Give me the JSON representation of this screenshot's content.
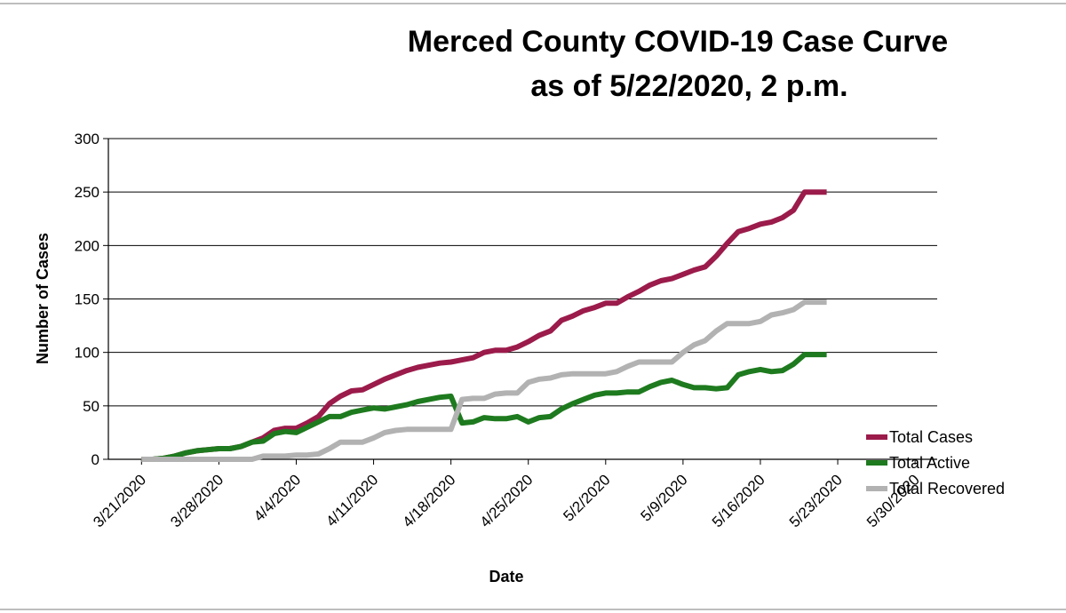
{
  "chart_data": {
    "type": "line",
    "title": "Merced County COVID-19 Case Curve",
    "subtitle": "as of 5/22/2020, 2 p.m.",
    "xlabel": "Date",
    "ylabel": "Number of Cases",
    "ylim": [
      0,
      300
    ],
    "y_ticks": [
      0,
      50,
      100,
      150,
      200,
      250,
      300
    ],
    "x_tick_labels": [
      "3/21/2020",
      "3/28/2020",
      "4/4/2020",
      "4/11/2020",
      "4/18/2020",
      "4/25/2020",
      "5/2/2020",
      "5/9/2020",
      "5/16/2020",
      "5/23/2020",
      "5/30/2020"
    ],
    "x_range": [
      "3/18/2020",
      "6/1/2020"
    ],
    "grid": "horizontal",
    "legend_position": "bottom-right",
    "x": [
      "3/21/2020",
      "3/22/2020",
      "3/23/2020",
      "3/24/2020",
      "3/25/2020",
      "3/26/2020",
      "3/27/2020",
      "3/28/2020",
      "3/29/2020",
      "3/30/2020",
      "3/31/2020",
      "4/1/2020",
      "4/2/2020",
      "4/3/2020",
      "4/4/2020",
      "4/5/2020",
      "4/6/2020",
      "4/7/2020",
      "4/8/2020",
      "4/9/2020",
      "4/10/2020",
      "4/11/2020",
      "4/12/2020",
      "4/13/2020",
      "4/14/2020",
      "4/15/2020",
      "4/16/2020",
      "4/17/2020",
      "4/18/2020",
      "4/19/2020",
      "4/20/2020",
      "4/21/2020",
      "4/22/2020",
      "4/23/2020",
      "4/24/2020",
      "4/25/2020",
      "4/26/2020",
      "4/27/2020",
      "4/28/2020",
      "4/29/2020",
      "4/30/2020",
      "5/1/2020",
      "5/2/2020",
      "5/3/2020",
      "5/4/2020",
      "5/5/2020",
      "5/6/2020",
      "5/7/2020",
      "5/8/2020",
      "5/9/2020",
      "5/10/2020",
      "5/11/2020",
      "5/12/2020",
      "5/13/2020",
      "5/14/2020",
      "5/15/2020",
      "5/16/2020",
      "5/17/2020",
      "5/18/2020",
      "5/19/2020",
      "5/20/2020",
      "5/21/2020",
      "5/22/2020"
    ],
    "series": [
      {
        "name": "Total Cases",
        "color": "#9b1b4b",
        "values": [
          0,
          0,
          1,
          3,
          6,
          8,
          9,
          10,
          10,
          12,
          16,
          20,
          27,
          29,
          29,
          34,
          40,
          52,
          59,
          64,
          65,
          70,
          75,
          79,
          83,
          86,
          88,
          90,
          91,
          93,
          95,
          100,
          102,
          102,
          105,
          110,
          116,
          120,
          130,
          134,
          139,
          142,
          146,
          146,
          152,
          157,
          163,
          167,
          169,
          173,
          177,
          180,
          190,
          202,
          213,
          216,
          220,
          222,
          226,
          233,
          250,
          250,
          250
        ]
      },
      {
        "name": "Total Active",
        "color": "#1e7a1e",
        "values": [
          0,
          0,
          1,
          3,
          6,
          8,
          9,
          10,
          10,
          12,
          16,
          17,
          24,
          26,
          25,
          30,
          35,
          40,
          40,
          44,
          46,
          48,
          47,
          49,
          51,
          54,
          56,
          58,
          59,
          34,
          35,
          39,
          38,
          38,
          40,
          35,
          39,
          40,
          47,
          52,
          56,
          60,
          62,
          62,
          63,
          63,
          68,
          72,
          74,
          70,
          67,
          67,
          66,
          67,
          79,
          82,
          84,
          82,
          83,
          89,
          98,
          98,
          98
        ]
      },
      {
        "name": "Total Recovered",
        "color": "#b2b2b2",
        "values": [
          0,
          0,
          0,
          0,
          0,
          0,
          0,
          0,
          0,
          0,
          0,
          3,
          3,
          3,
          4,
          4,
          5,
          10,
          16,
          16,
          16,
          20,
          25,
          27,
          28,
          28,
          28,
          28,
          28,
          56,
          57,
          57,
          61,
          62,
          62,
          72,
          75,
          76,
          79,
          80,
          80,
          80,
          80,
          82,
          87,
          91,
          91,
          91,
          91,
          100,
          107,
          111,
          120,
          127,
          127,
          127,
          129,
          135,
          137,
          140,
          147,
          147,
          147
        ]
      }
    ]
  }
}
